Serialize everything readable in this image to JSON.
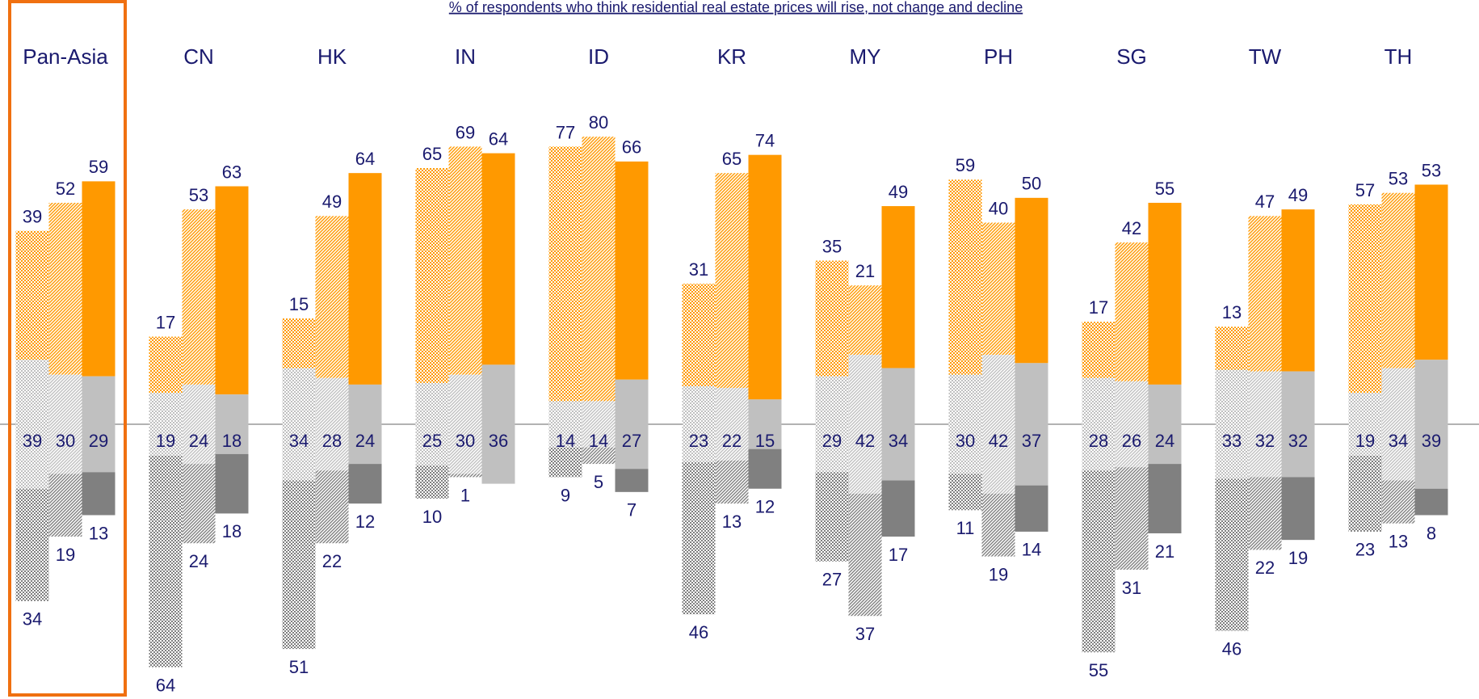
{
  "chart_data": {
    "type": "diverging_bar",
    "subtitle": "% of respondents who think residential real estate prices will rise, not change and decline",
    "categories": [
      "Pan-Asia",
      "CN",
      "HK",
      "IN",
      "ID",
      "KR",
      "MY",
      "PH",
      "SG",
      "TW",
      "TH"
    ],
    "highlight": "Pan-Asia",
    "colors": {
      "rise": "#ff9900",
      "no_change": "#c0c0c0",
      "decline": "#808080",
      "highlight": "#f07010"
    },
    "series": [
      {
        "pattern": "checker",
        "rise": [
          39,
          17,
          15,
          65,
          77,
          31,
          35,
          59,
          17,
          13,
          57
        ],
        "no_change": [
          39,
          19,
          34,
          25,
          14,
          23,
          29,
          30,
          28,
          33,
          19
        ],
        "decline": [
          34,
          64,
          51,
          10,
          9,
          46,
          27,
          11,
          55,
          46,
          23
        ]
      },
      {
        "pattern": "hatch",
        "rise": [
          52,
          53,
          49,
          69,
          80,
          65,
          21,
          40,
          42,
          47,
          53
        ],
        "no_change": [
          30,
          24,
          28,
          30,
          14,
          22,
          42,
          42,
          26,
          32,
          34
        ],
        "decline": [
          19,
          24,
          22,
          1,
          5,
          13,
          37,
          19,
          31,
          22,
          13
        ]
      },
      {
        "pattern": "solid",
        "rise": [
          59,
          63,
          64,
          64,
          66,
          74,
          49,
          50,
          55,
          49,
          53
        ],
        "no_change": [
          29,
          18,
          24,
          36,
          27,
          15,
          34,
          37,
          24,
          32,
          39
        ],
        "decline": [
          13,
          18,
          12,
          null,
          7,
          12,
          17,
          14,
          21,
          19,
          8
        ]
      }
    ]
  }
}
